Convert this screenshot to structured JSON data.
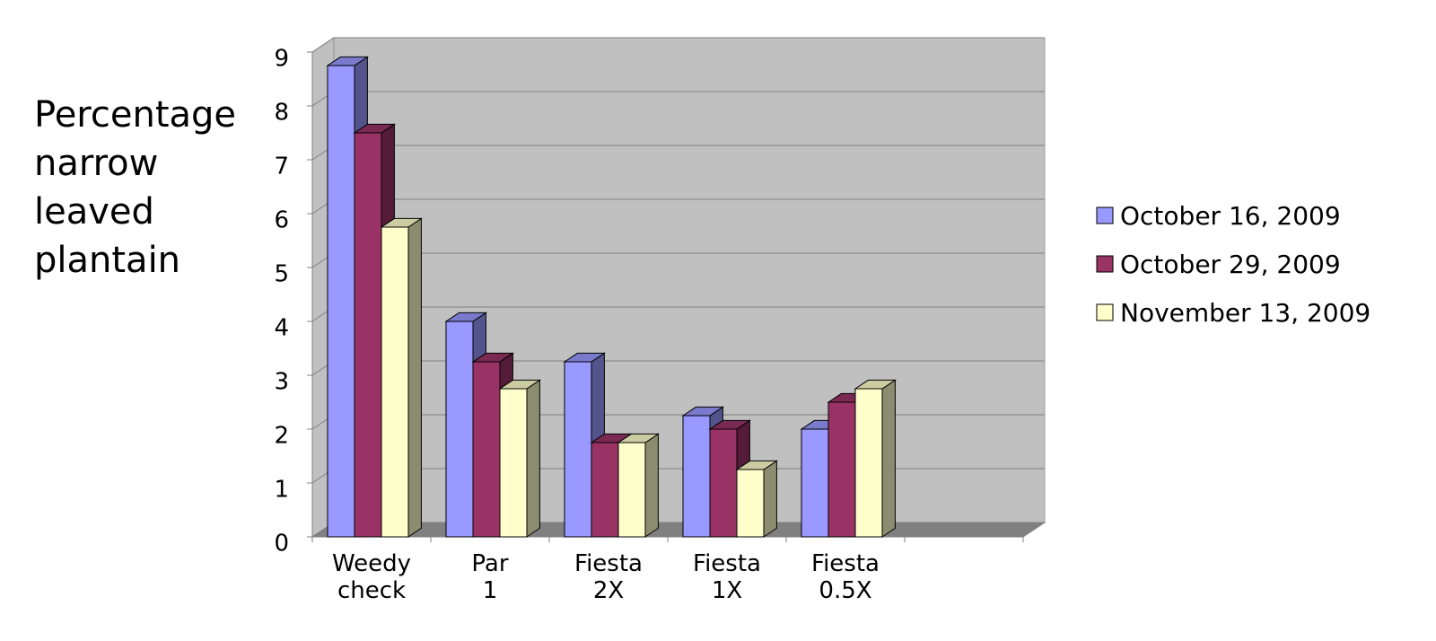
{
  "chart_data": {
    "type": "bar3d",
    "y_label": "Percentage narrow leaved plantain",
    "categories": [
      "Weedy\ncheck",
      "Par 1",
      "Fiesta\n2X",
      "Fiesta\n1X",
      "Fiesta\n0.5X",
      null
    ],
    "series": [
      {
        "name": "October 16, 2009",
        "color": "#9999ff",
        "values": [
          8.75,
          4.0,
          3.25,
          2.25,
          2.0,
          null
        ]
      },
      {
        "name": "October 29, 2009",
        "color": "#993366",
        "values": [
          7.5,
          3.25,
          1.75,
          2.0,
          2.5,
          null
        ]
      },
      {
        "name": "November 13, 2009",
        "color": "#ffffcc",
        "values": [
          5.75,
          2.75,
          1.75,
          1.25,
          2.75,
          null
        ]
      }
    ],
    "ylim": [
      0,
      9
    ],
    "yticks": [
      0,
      1,
      2,
      3,
      4,
      5,
      6,
      7,
      8,
      9
    ],
    "grid": true,
    "legend": "right"
  }
}
